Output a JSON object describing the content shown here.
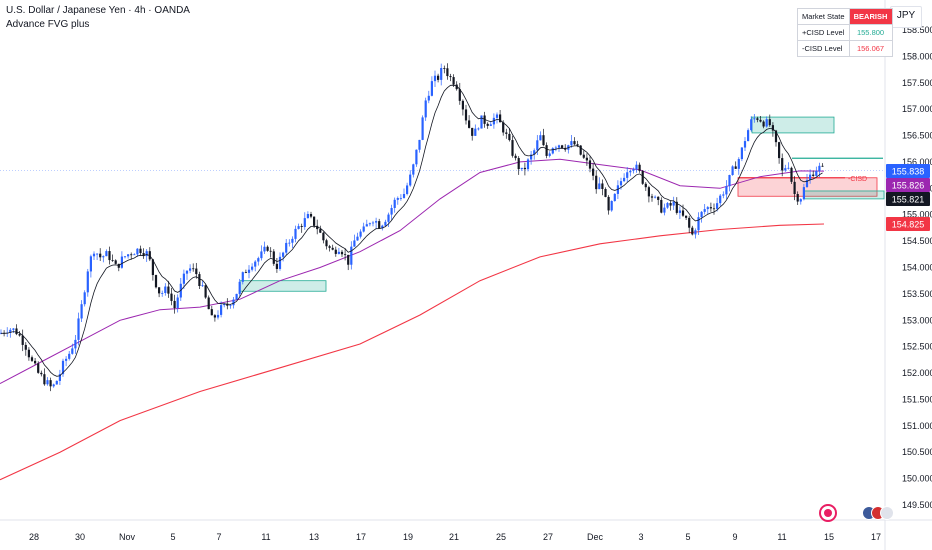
{
  "header": {
    "symbol": "U.S. Dollar / Japanese Yen · 4h · OANDA",
    "indicator": "Advance FVG plus"
  },
  "currency": "JPY",
  "table": {
    "state_label": "Market State",
    "state_value": "BEARISH",
    "cisd_up_label": "+CISD Level",
    "cisd_up_value": "155.800",
    "cisd_dn_label": "-CISD Level",
    "cisd_dn_value": "156.067"
  },
  "colors": {
    "up": "#2962ff",
    "down": "#131722",
    "ema_fast": "#131722",
    "ema_mid": "#9c27b0",
    "ema_slow": "#f23645",
    "fvg_bull": "#22ab94",
    "fvg_bear": "#f23645"
  },
  "chart_data": {
    "type": "candlestick",
    "yaxis_ticks": [
      "158.500",
      "158.000",
      "157.500",
      "157.000",
      "156.500",
      "156.000",
      "155.500",
      "155.000",
      "154.500",
      "154.000",
      "153.500",
      "153.000",
      "152.500",
      "152.000",
      "151.500",
      "151.000",
      "150.500",
      "150.000",
      "149.500"
    ],
    "xaxis_ticks": [
      "28",
      "30",
      "Nov",
      "5",
      "7",
      "11",
      "13",
      "17",
      "19",
      "21",
      "25",
      "27",
      "Dec",
      "3",
      "5",
      "9",
      "11",
      "15",
      "17"
    ],
    "ylim": [
      149.5,
      158.5
    ],
    "price_labels": [
      {
        "value": 155.838,
        "text": "155.838",
        "color": "#2962ff"
      },
      {
        "value": 155.826,
        "text": "155.826",
        "color": "#9c27b0"
      },
      {
        "value": 155.821,
        "text": "155.821",
        "color": "#131722"
      },
      {
        "value": 154.825,
        "text": "154.825",
        "color": "#f23645"
      }
    ],
    "cisd_label": "-CISD",
    "close_path": [
      {
        "x": 0,
        "y": 152.75
      },
      {
        "x": 8,
        "y": 152.85
      },
      {
        "x": 16,
        "y": 152.8
      },
      {
        "x": 25,
        "y": 152.55
      },
      {
        "x": 32,
        "y": 152.2
      },
      {
        "x": 38,
        "y": 152.0
      },
      {
        "x": 45,
        "y": 151.85
      },
      {
        "x": 52,
        "y": 151.7
      },
      {
        "x": 58,
        "y": 151.9
      },
      {
        "x": 64,
        "y": 152.2
      },
      {
        "x": 70,
        "y": 152.4
      },
      {
        "x": 76,
        "y": 152.7
      },
      {
        "x": 82,
        "y": 153.3
      },
      {
        "x": 88,
        "y": 154.0
      },
      {
        "x": 94,
        "y": 154.35
      },
      {
        "x": 100,
        "y": 154.2
      },
      {
        "x": 108,
        "y": 154.25
      },
      {
        "x": 116,
        "y": 154.0
      },
      {
        "x": 124,
        "y": 154.2
      },
      {
        "x": 132,
        "y": 154.3
      },
      {
        "x": 140,
        "y": 154.35
      },
      {
        "x": 148,
        "y": 154.25
      },
      {
        "x": 154,
        "y": 153.8
      },
      {
        "x": 160,
        "y": 153.5
      },
      {
        "x": 168,
        "y": 153.6
      },
      {
        "x": 174,
        "y": 153.2
      },
      {
        "x": 180,
        "y": 153.6
      },
      {
        "x": 188,
        "y": 154.0
      },
      {
        "x": 196,
        "y": 153.9
      },
      {
        "x": 204,
        "y": 153.5
      },
      {
        "x": 212,
        "y": 153.0
      },
      {
        "x": 220,
        "y": 153.2
      },
      {
        "x": 228,
        "y": 153.3
      },
      {
        "x": 236,
        "y": 153.5
      },
      {
        "x": 244,
        "y": 153.9
      },
      {
        "x": 252,
        "y": 154.1
      },
      {
        "x": 260,
        "y": 154.2
      },
      {
        "x": 268,
        "y": 154.4
      },
      {
        "x": 276,
        "y": 154.0
      },
      {
        "x": 284,
        "y": 154.3
      },
      {
        "x": 292,
        "y": 154.6
      },
      {
        "x": 300,
        "y": 154.8
      },
      {
        "x": 308,
        "y": 154.95
      },
      {
        "x": 316,
        "y": 154.8
      },
      {
        "x": 324,
        "y": 154.5
      },
      {
        "x": 332,
        "y": 154.3
      },
      {
        "x": 340,
        "y": 154.4
      },
      {
        "x": 348,
        "y": 154.1
      },
      {
        "x": 356,
        "y": 154.6
      },
      {
        "x": 364,
        "y": 154.7
      },
      {
        "x": 372,
        "y": 154.95
      },
      {
        "x": 380,
        "y": 154.8
      },
      {
        "x": 388,
        "y": 155.0
      },
      {
        "x": 396,
        "y": 155.3
      },
      {
        "x": 404,
        "y": 155.4
      },
      {
        "x": 412,
        "y": 155.8
      },
      {
        "x": 420,
        "y": 156.5
      },
      {
        "x": 426,
        "y": 157.2
      },
      {
        "x": 432,
        "y": 157.5
      },
      {
        "x": 438,
        "y": 157.6
      },
      {
        "x": 444,
        "y": 157.8
      },
      {
        "x": 450,
        "y": 157.6
      },
      {
        "x": 456,
        "y": 157.5
      },
      {
        "x": 462,
        "y": 157.1
      },
      {
        "x": 468,
        "y": 156.7
      },
      {
        "x": 474,
        "y": 156.5
      },
      {
        "x": 480,
        "y": 156.8
      },
      {
        "x": 488,
        "y": 156.75
      },
      {
        "x": 496,
        "y": 156.85
      },
      {
        "x": 504,
        "y": 156.6
      },
      {
        "x": 510,
        "y": 156.3
      },
      {
        "x": 516,
        "y": 156.0
      },
      {
        "x": 522,
        "y": 155.8
      },
      {
        "x": 528,
        "y": 156.0
      },
      {
        "x": 534,
        "y": 156.2
      },
      {
        "x": 540,
        "y": 156.5
      },
      {
        "x": 546,
        "y": 156.1
      },
      {
        "x": 552,
        "y": 156.3
      },
      {
        "x": 558,
        "y": 156.35
      },
      {
        "x": 566,
        "y": 156.3
      },
      {
        "x": 574,
        "y": 156.35
      },
      {
        "x": 582,
        "y": 156.1
      },
      {
        "x": 590,
        "y": 155.9
      },
      {
        "x": 596,
        "y": 155.5
      },
      {
        "x": 602,
        "y": 155.6
      },
      {
        "x": 608,
        "y": 155.0
      },
      {
        "x": 614,
        "y": 155.3
      },
      {
        "x": 620,
        "y": 155.6
      },
      {
        "x": 626,
        "y": 155.85
      },
      {
        "x": 632,
        "y": 155.95
      },
      {
        "x": 638,
        "y": 155.85
      },
      {
        "x": 644,
        "y": 155.6
      },
      {
        "x": 650,
        "y": 155.4
      },
      {
        "x": 656,
        "y": 155.25
      },
      {
        "x": 662,
        "y": 155.1
      },
      {
        "x": 668,
        "y": 155.15
      },
      {
        "x": 674,
        "y": 155.2
      },
      {
        "x": 680,
        "y": 155.0
      },
      {
        "x": 686,
        "y": 154.9
      },
      {
        "x": 692,
        "y": 154.6
      },
      {
        "x": 698,
        "y": 154.9
      },
      {
        "x": 704,
        "y": 155.1
      },
      {
        "x": 710,
        "y": 155.15
      },
      {
        "x": 716,
        "y": 155.2
      },
      {
        "x": 722,
        "y": 155.4
      },
      {
        "x": 728,
        "y": 155.6
      },
      {
        "x": 734,
        "y": 155.9
      },
      {
        "x": 740,
        "y": 156.1
      },
      {
        "x": 746,
        "y": 156.5
      },
      {
        "x": 752,
        "y": 156.8
      },
      {
        "x": 758,
        "y": 156.85
      },
      {
        "x": 764,
        "y": 156.75
      },
      {
        "x": 770,
        "y": 156.7
      },
      {
        "x": 776,
        "y": 156.3
      },
      {
        "x": 782,
        "y": 155.8
      },
      {
        "x": 788,
        "y": 156.0
      },
      {
        "x": 794,
        "y": 155.4
      },
      {
        "x": 800,
        "y": 155.3
      },
      {
        "x": 806,
        "y": 155.6
      },
      {
        "x": 812,
        "y": 155.8
      },
      {
        "x": 818,
        "y": 155.9
      },
      {
        "x": 824,
        "y": 155.83
      }
    ],
    "ema_slow": [
      {
        "x": 0,
        "y": 149.98
      },
      {
        "x": 60,
        "y": 150.5
      },
      {
        "x": 120,
        "y": 151.1
      },
      {
        "x": 200,
        "y": 151.65
      },
      {
        "x": 280,
        "y": 152.1
      },
      {
        "x": 360,
        "y": 152.55
      },
      {
        "x": 420,
        "y": 153.1
      },
      {
        "x": 480,
        "y": 153.75
      },
      {
        "x": 540,
        "y": 154.2
      },
      {
        "x": 600,
        "y": 154.45
      },
      {
        "x": 660,
        "y": 154.6
      },
      {
        "x": 720,
        "y": 154.72
      },
      {
        "x": 780,
        "y": 154.8
      },
      {
        "x": 824,
        "y": 154.825
      }
    ],
    "ema_mid": [
      {
        "x": 0,
        "y": 151.8
      },
      {
        "x": 40,
        "y": 152.2
      },
      {
        "x": 80,
        "y": 152.6
      },
      {
        "x": 120,
        "y": 153.0
      },
      {
        "x": 160,
        "y": 153.2
      },
      {
        "x": 200,
        "y": 153.25
      },
      {
        "x": 240,
        "y": 153.4
      },
      {
        "x": 280,
        "y": 153.75
      },
      {
        "x": 320,
        "y": 154.0
      },
      {
        "x": 360,
        "y": 154.3
      },
      {
        "x": 400,
        "y": 154.7
      },
      {
        "x": 440,
        "y": 155.3
      },
      {
        "x": 480,
        "y": 155.8
      },
      {
        "x": 520,
        "y": 156.0
      },
      {
        "x": 560,
        "y": 156.05
      },
      {
        "x": 600,
        "y": 155.95
      },
      {
        "x": 640,
        "y": 155.85
      },
      {
        "x": 680,
        "y": 155.55
      },
      {
        "x": 720,
        "y": 155.5
      },
      {
        "x": 760,
        "y": 155.72
      },
      {
        "x": 800,
        "y": 155.83
      },
      {
        "x": 824,
        "y": 155.826
      }
    ],
    "fvg_zones": [
      {
        "x0": 240,
        "x1": 326,
        "y0": 153.55,
        "y1": 153.75,
        "kind": "bull"
      },
      {
        "x0": 752,
        "x1": 834,
        "y0": 156.55,
        "y1": 156.85,
        "kind": "bull"
      },
      {
        "x0": 738,
        "x1": 877,
        "y0": 155.35,
        "y1": 155.7,
        "kind": "bear"
      },
      {
        "x0": 804,
        "x1": 884,
        "y0": 155.3,
        "y1": 155.45,
        "kind": "bull"
      }
    ],
    "cisd_lines": [
      {
        "x0": 738,
        "x1": 845,
        "y": 155.7,
        "kind": "bear"
      },
      {
        "x0": 792,
        "x1": 883,
        "y": 156.07,
        "kind": "bull"
      }
    ]
  }
}
